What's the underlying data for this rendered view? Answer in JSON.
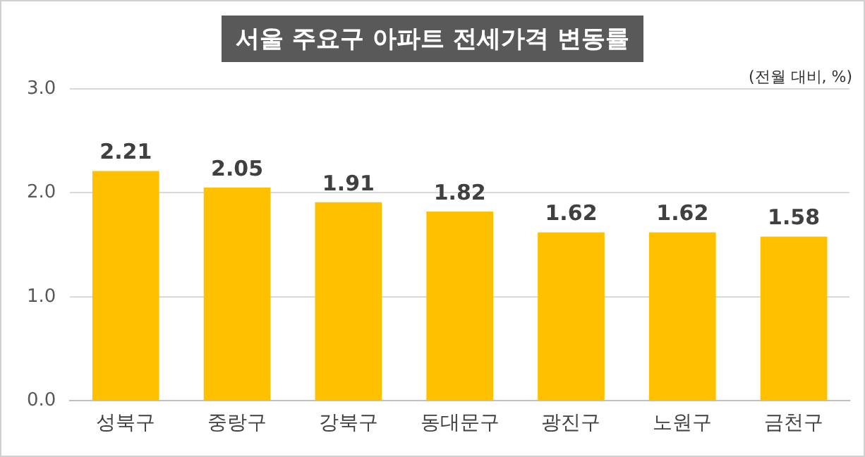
{
  "chart_data": {
    "type": "bar",
    "title": "서울 주요구 아파트 전세가격 변동률",
    "subtitle": "(전월 대비, %)",
    "categories": [
      "성북구",
      "중랑구",
      "강북구",
      "동대문구",
      "광진구",
      "노원구",
      "금천구"
    ],
    "values": [
      2.21,
      2.05,
      1.91,
      1.82,
      1.62,
      1.62,
      1.58
    ],
    "color": "#ffc000",
    "ylim": [
      0,
      3
    ],
    "yticks": [
      {
        "value": 0,
        "label": "0.0"
      },
      {
        "value": 1,
        "label": "1.0"
      },
      {
        "value": 2,
        "label": "2.0"
      },
      {
        "value": 3,
        "label": "3.0"
      }
    ],
    "grid": "y",
    "data_labels": true
  }
}
